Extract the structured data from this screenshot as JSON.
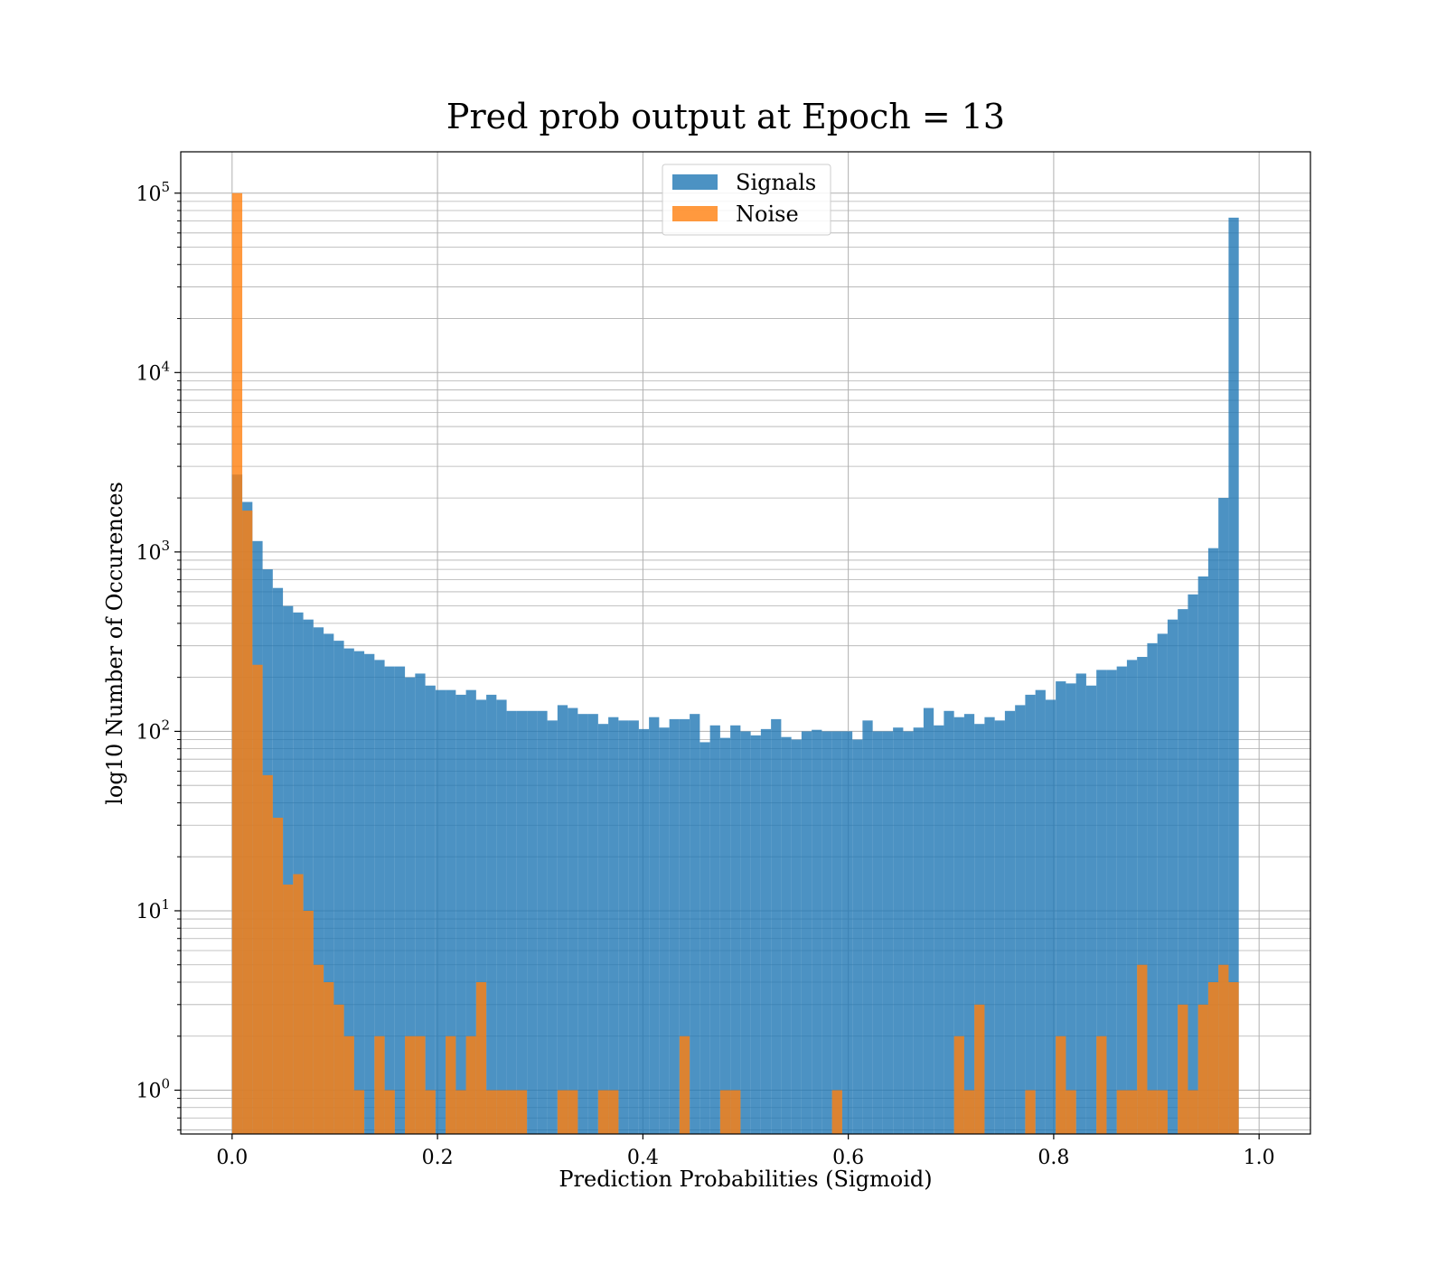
{
  "chart_data": {
    "type": "bar",
    "title": "Pred prob output at Epoch = 13",
    "xlabel": "Prediction Probabilities (Sigmoid)",
    "ylabel": "log10 Number of Occurences",
    "x_scale": "linear",
    "y_scale": "log",
    "xlim": [
      -0.05,
      1.05
    ],
    "ylim": [
      0.57,
      170000
    ],
    "x_ticks": [
      {
        "value": 0.0,
        "label": "0.0"
      },
      {
        "value": 0.2,
        "label": "0.2"
      },
      {
        "value": 0.4,
        "label": "0.4"
      },
      {
        "value": 0.6,
        "label": "0.6"
      },
      {
        "value": 0.8,
        "label": "0.8"
      },
      {
        "value": 1.0,
        "label": "1.0"
      }
    ],
    "y_ticks": [
      {
        "value": 1,
        "base": "10",
        "exp": "0"
      },
      {
        "value": 10,
        "base": "10",
        "exp": "1"
      },
      {
        "value": 100,
        "base": "10",
        "exp": "2"
      },
      {
        "value": 1000,
        "base": "10",
        "exp": "3"
      },
      {
        "value": 10000,
        "base": "10",
        "exp": "4"
      },
      {
        "value": 100000,
        "base": "10",
        "exp": "5"
      }
    ],
    "grid": true,
    "legend": "upper center",
    "bins": {
      "start": 0.0,
      "end": 1.0,
      "count": 101
    },
    "series": [
      {
        "name": "Signals",
        "color": "#1f77b4",
        "opacity": 0.8,
        "values": [
          2700,
          1900,
          1150,
          800,
          630,
          500,
          460,
          420,
          380,
          350,
          320,
          290,
          280,
          270,
          250,
          230,
          230,
          200,
          210,
          180,
          170,
          170,
          160,
          170,
          150,
          160,
          150,
          130,
          130,
          130,
          130,
          115,
          140,
          135,
          125,
          125,
          110,
          120,
          115,
          115,
          103,
          120,
          105,
          117,
          117,
          125,
          87,
          108,
          92,
          108,
          100,
          95,
          103,
          117,
          93,
          90,
          100,
          102,
          100,
          100,
          100,
          90,
          115,
          100,
          100,
          105,
          100,
          105,
          135,
          108,
          130,
          120,
          125,
          110,
          120,
          115,
          130,
          140,
          160,
          170,
          150,
          190,
          185,
          210,
          180,
          220,
          220,
          230,
          250,
          260,
          310,
          350,
          420,
          480,
          580,
          730,
          1050,
          2000,
          73000,
          0,
          0
        ]
      },
      {
        "name": "Noise",
        "color": "#ff7f0e",
        "opacity": 0.8,
        "values": [
          100000,
          1700,
          235,
          57,
          33,
          14,
          16,
          10,
          5,
          4,
          3,
          2,
          1,
          0,
          2,
          1,
          0,
          2,
          2,
          1,
          0,
          2,
          1,
          2,
          4,
          1,
          1,
          1,
          1,
          0,
          0,
          0,
          1,
          1,
          0,
          0,
          1,
          1,
          0,
          0,
          0,
          0,
          0,
          0,
          2,
          0,
          0,
          0,
          1,
          1,
          0,
          0,
          0,
          0,
          0,
          0,
          0,
          0,
          0,
          1,
          0,
          0,
          0,
          0,
          0,
          0,
          0,
          0,
          0,
          0,
          0,
          2,
          1,
          3,
          0,
          0,
          0,
          0,
          1,
          0,
          0,
          2,
          1,
          0,
          0,
          2,
          0,
          1,
          1,
          5,
          1,
          1,
          0,
          3,
          1,
          3,
          4,
          5,
          4,
          0,
          0
        ]
      }
    ]
  }
}
